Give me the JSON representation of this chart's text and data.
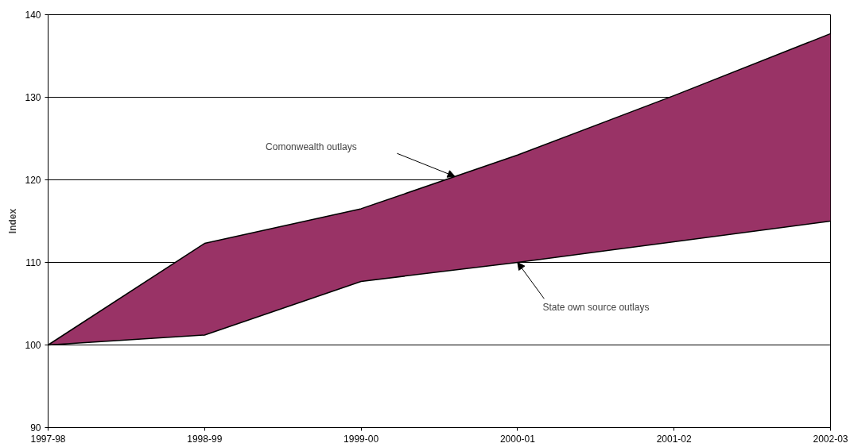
{
  "chart_data": {
    "type": "line",
    "ylabel": "Index",
    "categories": [
      "1997-98",
      "1998-99",
      "1999-00",
      "2000-01",
      "2001-02",
      "2002-03"
    ],
    "series": [
      {
        "type": "area",
        "color": "#993366",
        "values": [
          100,
          112.3,
          116.5,
          123,
          130.2,
          137.7
        ]
      },
      {
        "color": "#000000",
        "values": [
          100,
          101.2,
          107.7,
          110,
          112.5,
          115
        ]
      }
    ],
    "annotations": [
      "Comonwealth outlays",
      {
        "text": "State own source outlays",
        "x": "2000-01",
        "y": 110
      }
    ],
    "ylim": [
      90,
      140
    ],
    "yticks": [
      90,
      100,
      110,
      120,
      130,
      140
    ],
    "grid": "y"
  }
}
